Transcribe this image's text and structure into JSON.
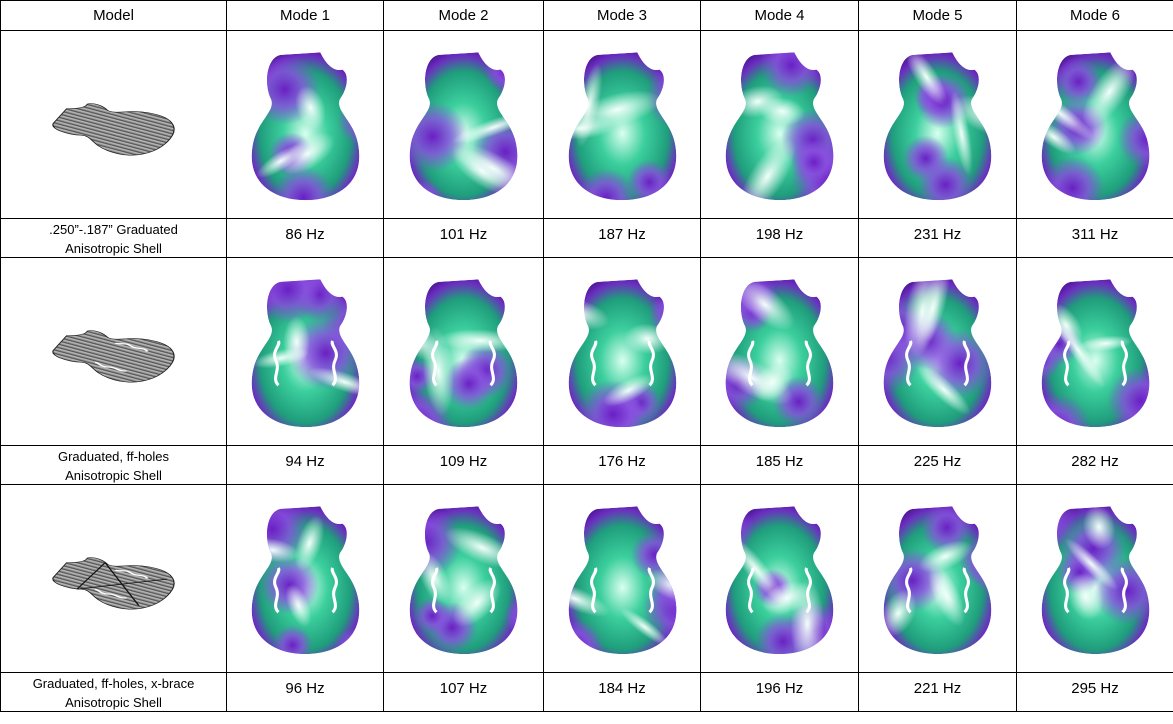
{
  "header": [
    "Model",
    "Mode 1",
    "Mode 2",
    "Mode 3",
    "Mode 4",
    "Mode 5",
    "Mode 6"
  ],
  "rows": [
    {
      "model": [
        ".250”-.187” Graduated",
        "Anisotropic Shell"
      ],
      "frequencies": [
        "86 Hz",
        "101 Hz",
        "187 Hz",
        "198 Hz",
        "231 Hz",
        "311 Hz"
      ]
    },
    {
      "model": [
        "Graduated, ff-holes",
        "Anisotropic Shell"
      ],
      "frequencies": [
        "94 Hz",
        "109 Hz",
        "176 Hz",
        "185 Hz",
        "225 Hz",
        "282 Hz"
      ]
    },
    {
      "model": [
        "Graduated, ff-holes, x-brace",
        "Anisotropic Shell"
      ],
      "frequencies": [
        "96 Hz",
        "107 Hz",
        "184 Hz",
        "196 Hz",
        "221 Hz",
        "295 Hz"
      ]
    }
  ]
}
